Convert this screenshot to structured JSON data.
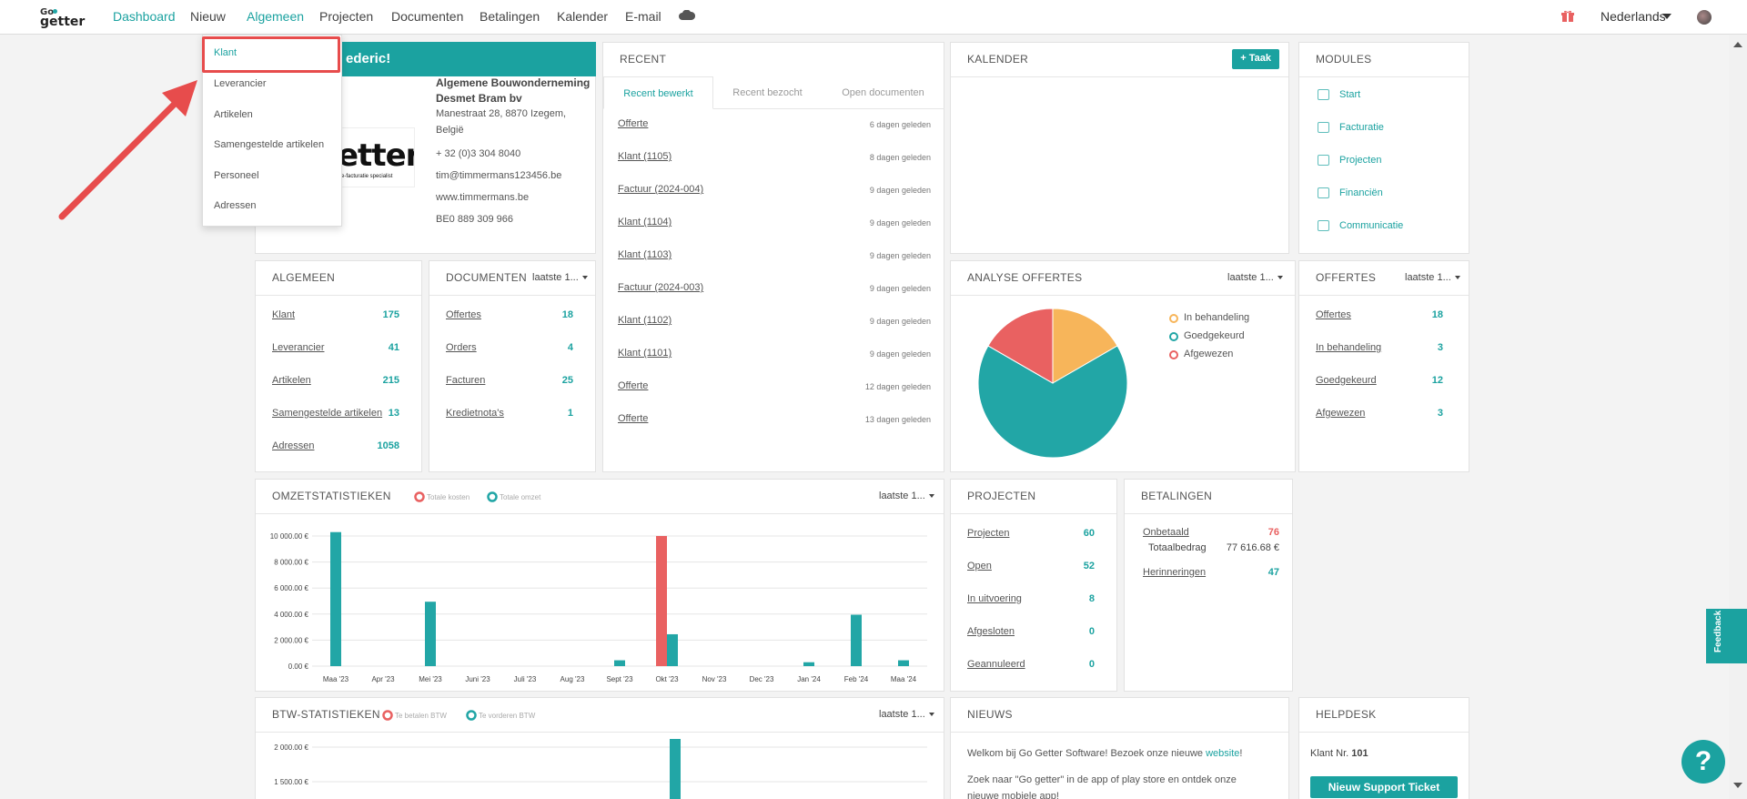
{
  "nav": {
    "items": [
      "Dashboard",
      "Nieuw",
      "Algemeen",
      "Projecten",
      "Documenten",
      "Betalingen",
      "Kalender",
      "E-mail"
    ],
    "language": "Nederlands"
  },
  "dropdown": {
    "items": [
      "Klant",
      "Leverancier",
      "Artikelen",
      "Samengestelde artikelen",
      "Personeel",
      "Adressen"
    ]
  },
  "welcome": {
    "text": "ederic!",
    "company": [
      "Algemene Bouwonderneming",
      "Desmet Bram bv"
    ],
    "address": [
      "Manestraat 28, 8870 Izegem,",
      "België"
    ],
    "phone": "+ 32 (0)3 304 8040",
    "email": "tim@timmermans123456.be",
    "website": "www.timmermans.be",
    "vat": "BE0 889 309 966",
    "logo": "etter",
    "logo_sub": "e-facturatie specialist"
  },
  "recent": {
    "title": "RECENT",
    "tabs": [
      "Recent bewerkt",
      "Recent bezocht",
      "Open documenten"
    ],
    "rows": [
      {
        "label": "Offerte",
        "date": "6 dagen geleden"
      },
      {
        "label": "Klant (1105)",
        "date": "8 dagen geleden"
      },
      {
        "label": "Factuur (2024-004)",
        "date": "9 dagen geleden"
      },
      {
        "label": "Klant (1104)",
        "date": "9 dagen geleden"
      },
      {
        "label": "Klant (1103)",
        "date": "9 dagen geleden"
      },
      {
        "label": "Factuur (2024-003)",
        "date": "9 dagen geleden"
      },
      {
        "label": "Klant (1102)",
        "date": "9 dagen geleden"
      },
      {
        "label": "Klant (1101)",
        "date": "9 dagen geleden"
      },
      {
        "label": "Offerte",
        "date": "12 dagen geleden"
      },
      {
        "label": "Offerte",
        "date": "13 dagen geleden"
      }
    ]
  },
  "kalender": {
    "title": "KALENDER",
    "button": "+ Taak"
  },
  "modules": {
    "title": "MODULES",
    "items": [
      "Start",
      "Facturatie",
      "Projecten",
      "Financiën",
      "Communicatie"
    ]
  },
  "algemeen": {
    "title": "ALGEMEEN",
    "rows": [
      {
        "label": "Klant",
        "value": "175"
      },
      {
        "label": "Leverancier",
        "value": "41"
      },
      {
        "label": "Artikelen",
        "value": "215"
      },
      {
        "label": "Samengestelde artikelen",
        "value": "13"
      },
      {
        "label": "Adressen",
        "value": "1058"
      }
    ]
  },
  "documenten": {
    "title": "DOCUMENTEN",
    "dropdown": "laatste 1...",
    "rows": [
      {
        "label": "Offertes",
        "value": "18"
      },
      {
        "label": "Orders",
        "value": "4"
      },
      {
        "label": "Facturen",
        "value": "25"
      },
      {
        "label": "Kredietnota's",
        "value": "1"
      }
    ]
  },
  "analyse": {
    "title": "ANALYSE OFFERTES",
    "dropdown": "laatste 1..."
  },
  "offertes": {
    "title": "OFFERTES",
    "dropdown": "laatste 1...",
    "rows": [
      {
        "label": "Offertes",
        "value": "18"
      },
      {
        "label": "In behandeling",
        "value": "3"
      },
      {
        "label": "Goedgekeurd",
        "value": "12"
      },
      {
        "label": "Afgewezen",
        "value": "3"
      }
    ]
  },
  "omzet": {
    "title": "OMZETSTATISTIEKEN",
    "dropdown": "laatste 1..."
  },
  "projecten": {
    "title": "PROJECTEN",
    "rows": [
      {
        "label": "Projecten",
        "value": "60"
      },
      {
        "label": "Open",
        "value": "52"
      },
      {
        "label": "In uitvoering",
        "value": "8"
      },
      {
        "label": "Afgesloten",
        "value": "0"
      },
      {
        "label": "Geannuleerd",
        "value": "0"
      }
    ]
  },
  "betalingen": {
    "title": "BETALINGEN",
    "onbetaald": "Onbetaald",
    "onbetaald_value": "76",
    "totaal_label": "Totaalbedrag",
    "totaal_value": "77 616.68 €",
    "herinneringen": "Herinneringen",
    "herinneringen_value": "47"
  },
  "btw": {
    "title": "BTW-STATISTIEKEN",
    "dropdown": "laatste 1..."
  },
  "nieuws": {
    "title": "NIEUWS",
    "line1": "Welkom bij Go Getter Software! Bezoek onze nieuwe",
    "link": "website",
    "line1_end": "!",
    "line2": "Zoek naar \"Go getter\" in de app of play store en ontdek onze nieuwe mobiele app!"
  },
  "helpdesk": {
    "title": "HELPDESK",
    "klant_label": "Klant Nr.",
    "klant_nr": "101",
    "button": "Nieuw Support Ticket"
  },
  "feedback": "Feedback",
  "help": "?",
  "colors": {
    "teal": "#1ba2a0",
    "red": "#e96161",
    "orange": "#f7b55a"
  },
  "chart_data": [
    {
      "type": "pie",
      "title": "ANALYSE OFFERTES",
      "series": [
        {
          "name": "In behandeling",
          "value": 3,
          "color": "#f7b55a"
        },
        {
          "name": "Goedgekeurd",
          "value": 12,
          "color": "#22a6a6"
        },
        {
          "name": "Afgewezen",
          "value": 3,
          "color": "#e96161"
        }
      ]
    },
    {
      "type": "bar",
      "title": "OMZETSTATISTIEKEN",
      "categories": [
        "Maa '23",
        "Apr '23",
        "Mei '23",
        "Juni '23",
        "Juli '23",
        "Aug '23",
        "Sept '23",
        "Okt '23",
        "Nov '23",
        "Dec '23",
        "Jan '24",
        "Feb '24",
        "Maa '24"
      ],
      "series": [
        {
          "name": "Totale kosten",
          "color": "#e96161",
          "values": [
            0,
            0,
            0,
            0,
            0,
            0,
            0,
            10000,
            0,
            0,
            0,
            0,
            0
          ]
        },
        {
          "name": "Totale omzet",
          "color": "#22a6a6",
          "values": [
            10300,
            0,
            4950,
            0,
            0,
            0,
            450,
            2450,
            0,
            0,
            300,
            3950,
            450
          ]
        }
      ],
      "yticks": [
        "0.00 €",
        "2 000.00 €",
        "4 000.00 €",
        "6 000.00 €",
        "8 000.00 €",
        "10 000.00 €"
      ],
      "ylim": [
        0,
        10000
      ]
    },
    {
      "type": "bar",
      "title": "BTW-STATISTIEKEN",
      "series": [
        {
          "name": "Te betalen BTW",
          "color": "#e96161"
        },
        {
          "name": "Te vorderen BTW",
          "color": "#22a6a6"
        }
      ],
      "yticks": [
        "1 500.00 €",
        "2 000.00 €"
      ]
    }
  ]
}
